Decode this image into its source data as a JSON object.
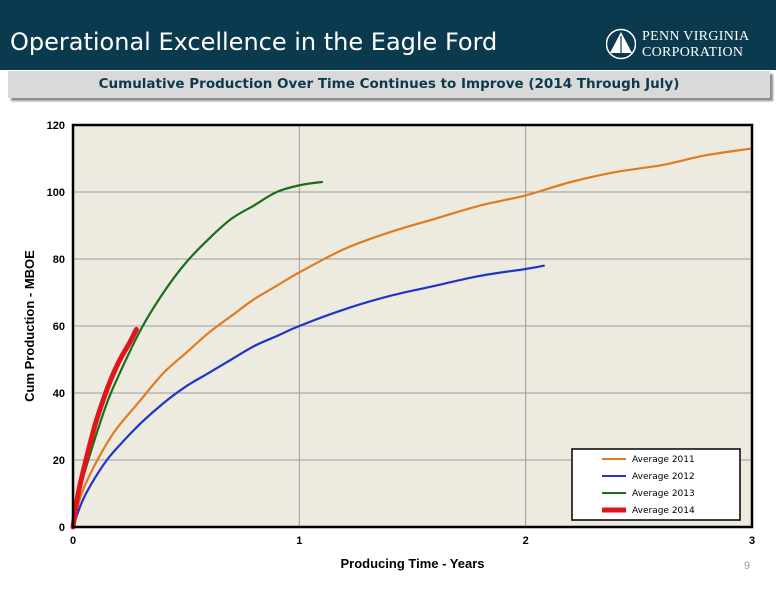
{
  "slide": {
    "title": "Operational Excellence in the Eagle Ford",
    "subtitle": "Cumulative Production Over Time Continues to Improve (2014 Through July)",
    "page_number": "9",
    "logo": {
      "line1": "PENN VIRGINIA",
      "line2": "CORPORATION"
    },
    "colors": {
      "header": "#0b3a4e",
      "subtitle_bar": "#d9d9d9",
      "plot_bg": "#edeae0"
    }
  },
  "chart_data": {
    "type": "line",
    "title": "",
    "xlabel": "Producing Time - Years",
    "ylabel": "Cum Production - MBOE",
    "xlim": [
      0,
      3
    ],
    "ylim": [
      0,
      120
    ],
    "x_ticks": [
      "0",
      "1",
      "2",
      "3"
    ],
    "y_ticks": [
      "0",
      "20",
      "40",
      "60",
      "80",
      "100",
      "120"
    ],
    "grid": true,
    "legend_position": "bottom-right",
    "series": [
      {
        "name": "Average 2011",
        "color": "#e07b1f",
        "x": [
          0,
          0.02,
          0.05,
          0.1,
          0.15,
          0.2,
          0.3,
          0.4,
          0.5,
          0.6,
          0.7,
          0.8,
          0.9,
          1.0,
          1.2,
          1.4,
          1.6,
          1.8,
          2.0,
          2.2,
          2.4,
          2.6,
          2.8,
          3.0
        ],
        "y": [
          0,
          6,
          12,
          19,
          25,
          30,
          38,
          46,
          52,
          58,
          63,
          68,
          72,
          76,
          83,
          88,
          92,
          96,
          99,
          103,
          106,
          108,
          111,
          113
        ]
      },
      {
        "name": "Average 2012",
        "color": "#2233c8",
        "x": [
          0,
          0.02,
          0.05,
          0.1,
          0.15,
          0.2,
          0.3,
          0.4,
          0.5,
          0.6,
          0.7,
          0.8,
          0.9,
          1.0,
          1.2,
          1.4,
          1.6,
          1.8,
          2.0,
          2.08
        ],
        "y": [
          0,
          4,
          9,
          15,
          20,
          24,
          31,
          37,
          42,
          46,
          50,
          54,
          57,
          60,
          65,
          69,
          72,
          75,
          77,
          78
        ]
      },
      {
        "name": "Average 2013",
        "color": "#1a6e1a",
        "x": [
          0,
          0.02,
          0.05,
          0.1,
          0.15,
          0.2,
          0.3,
          0.4,
          0.5,
          0.6,
          0.7,
          0.8,
          0.9,
          1.0,
          1.1
        ],
        "y": [
          0,
          8,
          16,
          27,
          37,
          45,
          59,
          70,
          79,
          86,
          92,
          96,
          100,
          102,
          103
        ]
      },
      {
        "name": "Average 2014",
        "color": "#e0161b",
        "x": [
          0,
          0.02,
          0.05,
          0.1,
          0.15,
          0.2,
          0.25,
          0.28
        ],
        "y": [
          0,
          9,
          18,
          31,
          41,
          49,
          55,
          59
        ]
      }
    ]
  }
}
